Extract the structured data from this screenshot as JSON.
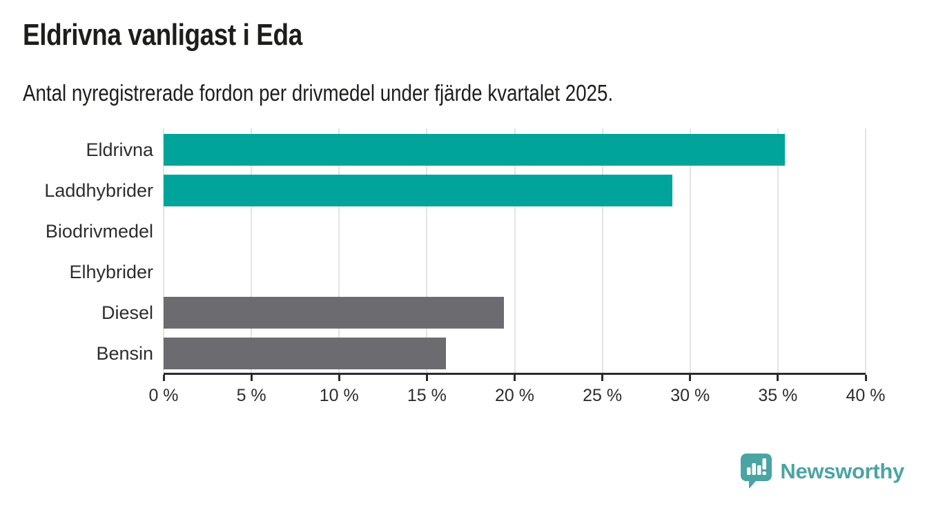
{
  "header": {
    "title": "Eldrivna vanligast i Eda",
    "subtitle": "Antal nyregistrerade fordon per drivmedel under fjärde kvartalet 2025."
  },
  "chart_data": {
    "type": "bar",
    "orientation": "horizontal",
    "title": "Eldrivna vanligast i Eda",
    "subtitle": "Antal nyregistrerade fordon per drivmedel under fjärde kvartalet 2025.",
    "categories": [
      "Eldrivna",
      "Laddhybrider",
      "Biodrivmedel",
      "Elhybrider",
      "Diesel",
      "Bensin"
    ],
    "values": [
      35.4,
      29,
      0,
      0,
      19.4,
      16.1
    ],
    "bar_colors": [
      "#00a49a",
      "#00a49a",
      "#6b6b70",
      "#00a49a",
      "#6b6b70",
      "#6b6b70"
    ],
    "xlabel": "",
    "ylabel": "",
    "xlim": [
      0,
      40
    ],
    "x_ticks": [
      0,
      5,
      10,
      15,
      20,
      25,
      30,
      35,
      40
    ],
    "tick_suffix": " %",
    "grid": true,
    "legend": false
  },
  "branding": {
    "logo_text": "Newsworthy",
    "logo_color": "#4ba4a4"
  },
  "colors": {
    "accent_teal": "#00a49a",
    "neutral_gray": "#6b6b70",
    "gridline": "#e3e3e3",
    "axis": "#2b2b2b",
    "text": "#1d1d1b"
  }
}
